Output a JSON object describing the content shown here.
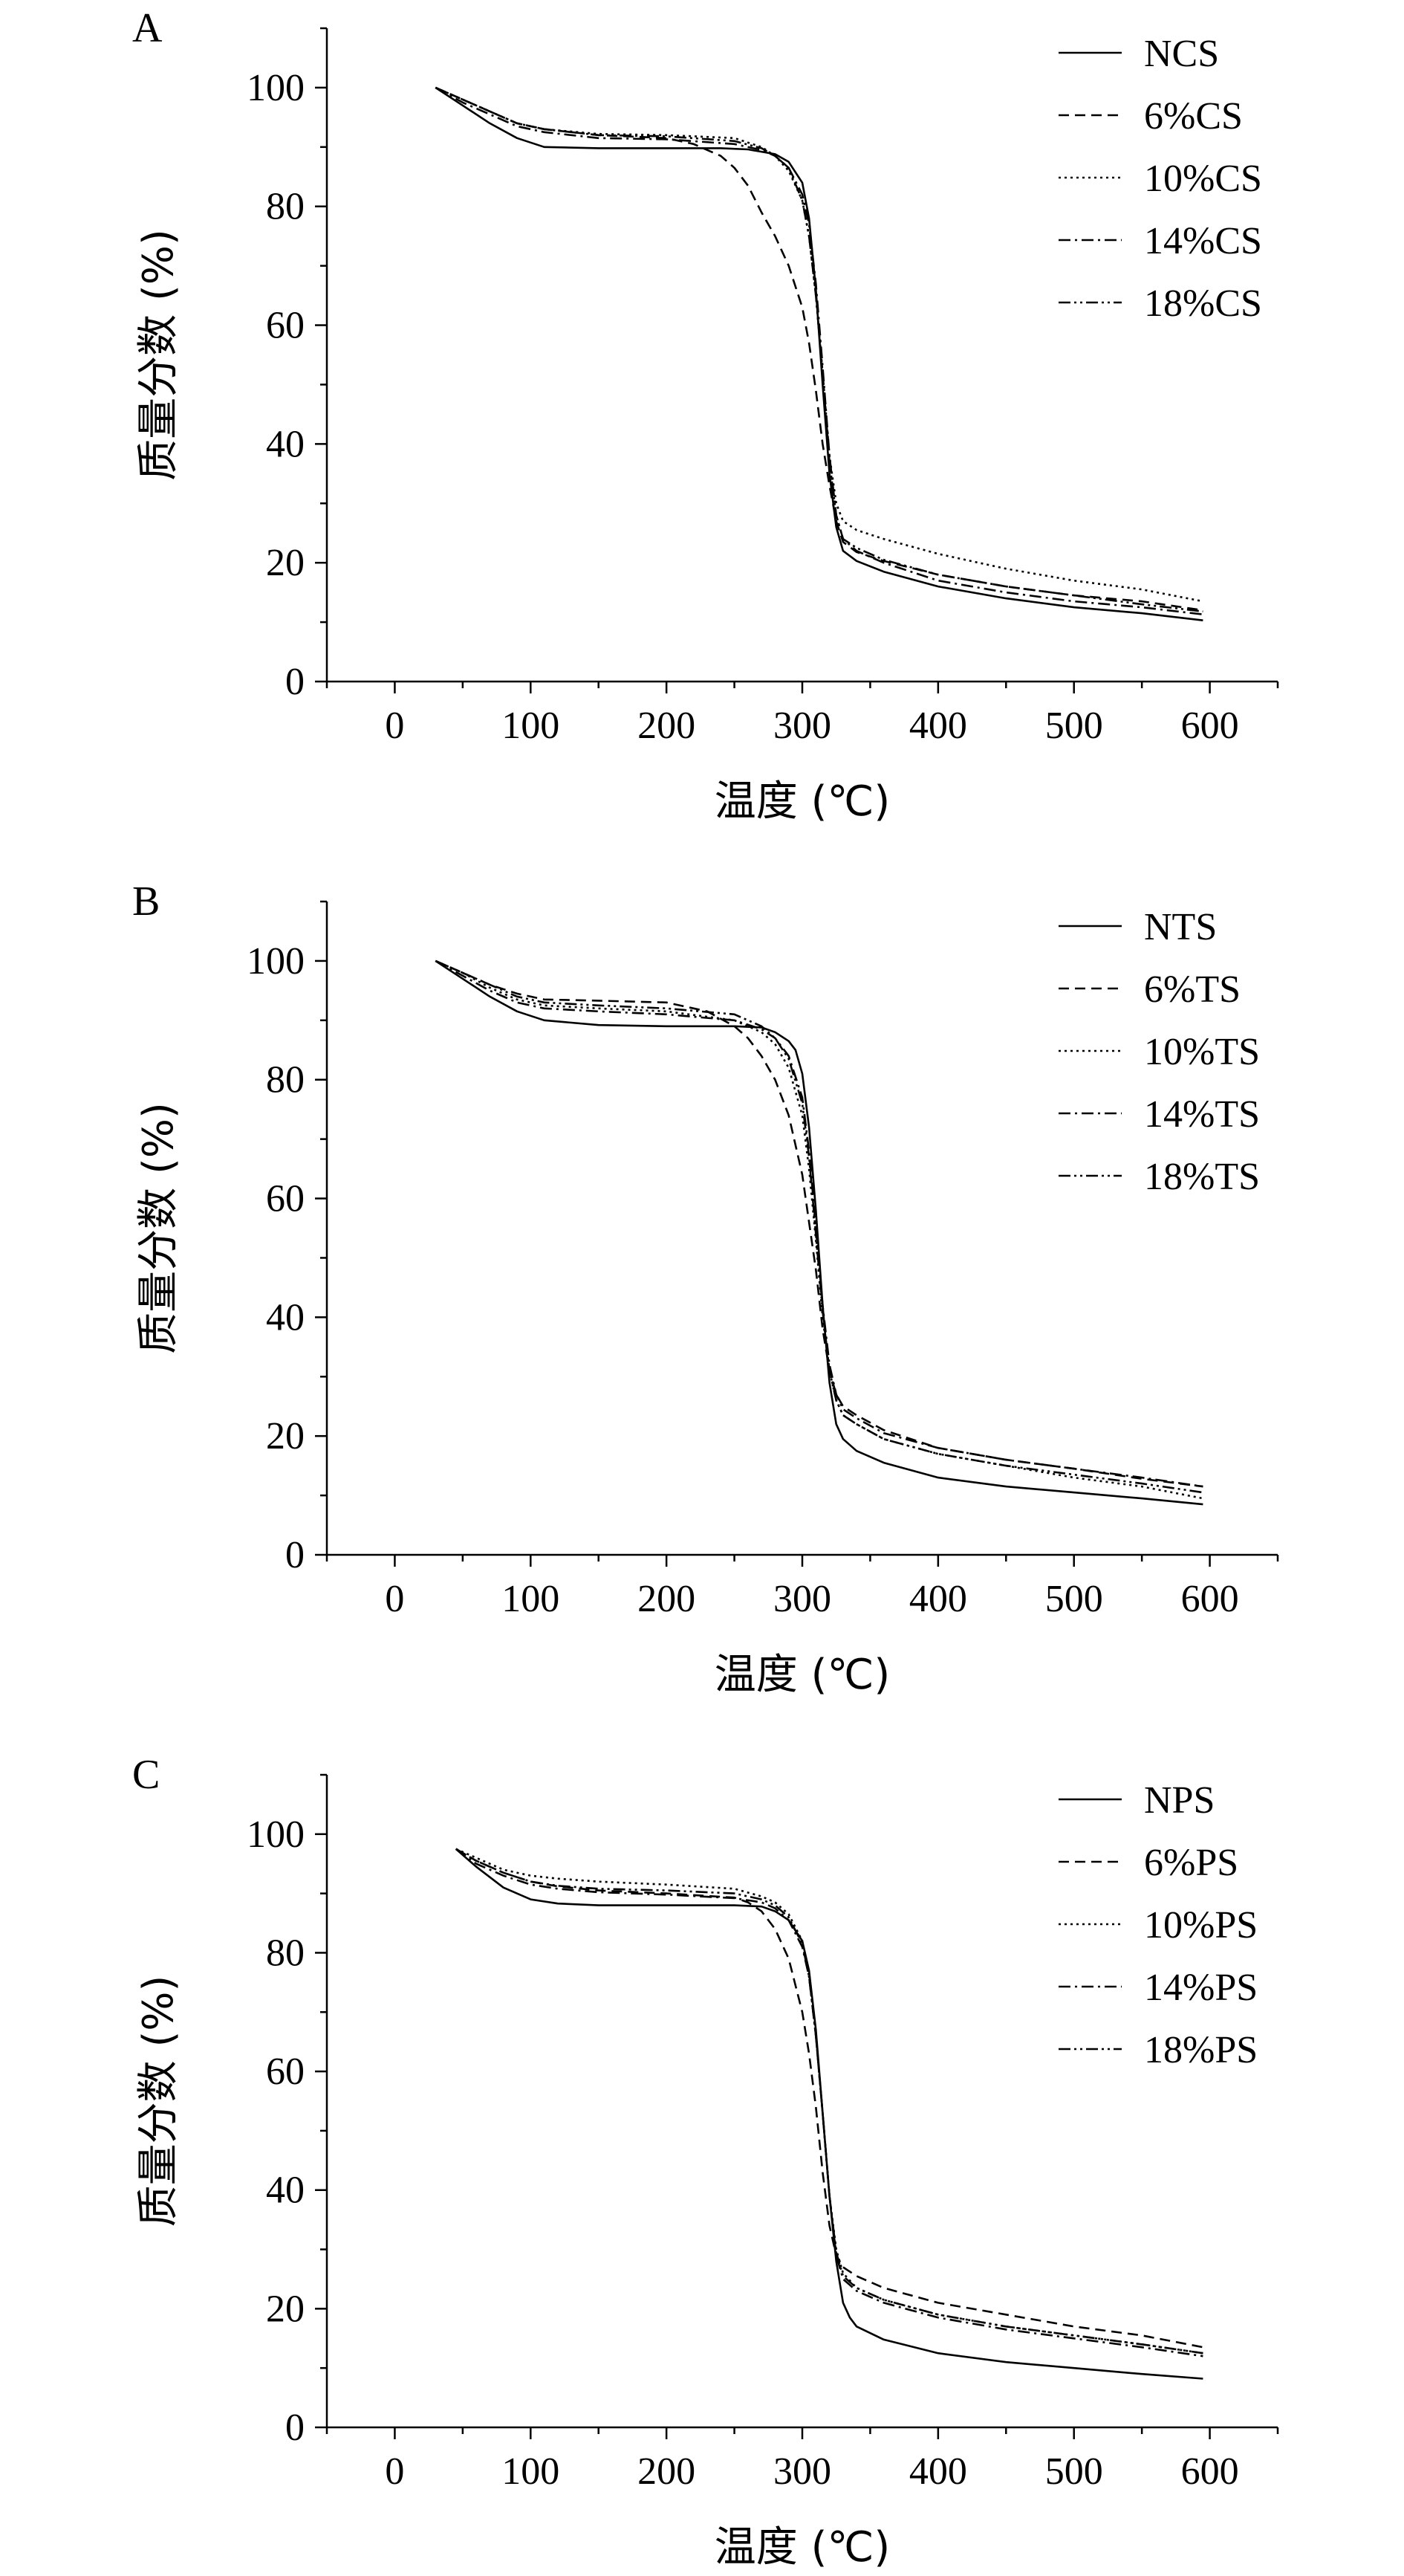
{
  "chart_data": [
    {
      "type": "line",
      "panel_label": "A",
      "xlabel": "温度 (℃)",
      "ylabel": "质量分数 (%)",
      "xlim": [
        -50,
        650
      ],
      "ylim": [
        0,
        110
      ],
      "xticks": [
        0,
        100,
        200,
        300,
        400,
        500,
        600
      ],
      "yticks": [
        0,
        20,
        40,
        60,
        80,
        100
      ],
      "grid": false,
      "legend": "top-right",
      "series": [
        {
          "name": "NCS",
          "dash": "solid",
          "x": [
            30,
            50,
            70,
            90,
            110,
            150,
            200,
            240,
            260,
            280,
            290,
            300,
            305,
            310,
            315,
            320,
            325,
            330,
            340,
            360,
            400,
            450,
            500,
            550,
            595
          ],
          "y": [
            100,
            97,
            94,
            91.5,
            90,
            89.8,
            89.8,
            89.8,
            89.6,
            88.8,
            87.5,
            84,
            78,
            66,
            50,
            35,
            26,
            22,
            20.3,
            18.5,
            16,
            14,
            12.5,
            11.5,
            10.3
          ]
        },
        {
          "name": "6%CS",
          "dash": "dash",
          "x": [
            30,
            50,
            70,
            90,
            110,
            150,
            200,
            220,
            240,
            250,
            260,
            270,
            280,
            290,
            300,
            305,
            310,
            315,
            320,
            325,
            330,
            340,
            360,
            400,
            450,
            500,
            550,
            595
          ],
          "y": [
            100,
            98,
            96,
            94,
            93,
            92,
            91.5,
            90.5,
            88.5,
            86.5,
            83.5,
            79,
            75,
            70,
            63,
            57,
            49,
            40,
            33,
            27,
            23.5,
            21.8,
            20.3,
            18,
            16,
            14.5,
            13.5,
            12
          ]
        },
        {
          "name": "10%CS",
          "dash": "dot",
          "x": [
            30,
            50,
            70,
            90,
            110,
            150,
            200,
            250,
            270,
            280,
            290,
            300,
            305,
            310,
            315,
            320,
            325,
            330,
            340,
            360,
            400,
            450,
            500,
            550,
            595
          ],
          "y": [
            100,
            98,
            96,
            94,
            93,
            92.2,
            92,
            91.5,
            90,
            88.5,
            86,
            81,
            75,
            65,
            52,
            38,
            30,
            27,
            25.5,
            24,
            21.5,
            19,
            17,
            15.5,
            13.5
          ]
        },
        {
          "name": "14%CS",
          "dash": "dashdot",
          "x": [
            30,
            50,
            70,
            90,
            110,
            150,
            200,
            250,
            270,
            280,
            290,
            300,
            305,
            310,
            315,
            320,
            325,
            330,
            340,
            360,
            400,
            450,
            500,
            550,
            595
          ],
          "y": [
            100,
            97.5,
            95.5,
            93.5,
            92.5,
            91.5,
            91.3,
            90.5,
            89.5,
            88.5,
            86.5,
            82,
            77,
            67,
            53,
            38,
            28,
            24,
            22,
            20,
            17,
            15,
            13.5,
            12.5,
            11.3
          ]
        },
        {
          "name": "18%CS",
          "dash": "dashdotdot",
          "x": [
            30,
            50,
            70,
            90,
            110,
            150,
            200,
            250,
            270,
            280,
            290,
            300,
            305,
            310,
            315,
            320,
            325,
            330,
            340,
            360,
            400,
            450,
            500,
            550,
            595
          ],
          "y": [
            100,
            98,
            96,
            94,
            93,
            92,
            91.8,
            91,
            89.8,
            88.5,
            86.5,
            81,
            75,
            65,
            52,
            37,
            28,
            24,
            22.5,
            20.5,
            18,
            16,
            14.5,
            13,
            11.8
          ]
        }
      ]
    },
    {
      "type": "line",
      "panel_label": "B",
      "xlabel": "温度 (℃)",
      "ylabel": "质量分数 (%)",
      "xlim": [
        -50,
        650
      ],
      "ylim": [
        0,
        110
      ],
      "xticks": [
        0,
        100,
        200,
        300,
        400,
        500,
        600
      ],
      "yticks": [
        0,
        20,
        40,
        60,
        80,
        100
      ],
      "grid": false,
      "legend": "top-right",
      "series": [
        {
          "name": "NTS",
          "dash": "solid",
          "x": [
            30,
            50,
            70,
            90,
            110,
            150,
            200,
            250,
            270,
            280,
            290,
            295,
            300,
            305,
            310,
            315,
            320,
            325,
            330,
            340,
            360,
            400,
            450,
            500,
            550,
            595
          ],
          "y": [
            100,
            97,
            94,
            91.5,
            90,
            89.2,
            89,
            89,
            88.8,
            88,
            86.5,
            85,
            81,
            72,
            58,
            42,
            29,
            22,
            19.5,
            17.5,
            15.5,
            13,
            11.5,
            10.5,
            9.5,
            8.5
          ]
        },
        {
          "name": "6%TS",
          "dash": "dash",
          "x": [
            30,
            50,
            70,
            90,
            110,
            150,
            200,
            230,
            250,
            260,
            270,
            280,
            290,
            300,
            305,
            310,
            315,
            320,
            325,
            330,
            340,
            360,
            400,
            450,
            500,
            550,
            595
          ],
          "y": [
            100,
            98,
            96,
            94.5,
            93.5,
            93.3,
            93,
            91.5,
            89,
            87,
            84,
            80,
            74,
            64,
            56,
            48,
            38,
            31,
            27,
            25,
            23.5,
            21,
            18,
            16,
            14.5,
            12.8,
            11.5
          ]
        },
        {
          "name": "10%TS",
          "dash": "dot",
          "x": [
            30,
            50,
            70,
            90,
            110,
            150,
            200,
            250,
            270,
            280,
            290,
            300,
            305,
            310,
            315,
            320,
            325,
            330,
            340,
            360,
            400,
            450,
            500,
            550,
            595
          ],
          "y": [
            100,
            98,
            95.5,
            93.5,
            92.5,
            92,
            91.5,
            90,
            88,
            86,
            82,
            74,
            65,
            53,
            40,
            31,
            26,
            23.5,
            22,
            19.5,
            17,
            15,
            13,
            11.5,
            9.5
          ]
        },
        {
          "name": "14%TS",
          "dash": "dashdot",
          "x": [
            30,
            50,
            70,
            90,
            110,
            150,
            200,
            250,
            270,
            280,
            290,
            300,
            305,
            310,
            315,
            320,
            325,
            330,
            340,
            360,
            400,
            450,
            500,
            550,
            595
          ],
          "y": [
            100,
            97.5,
            95,
            93,
            92,
            91.5,
            91,
            90,
            88.5,
            87,
            84,
            77,
            68,
            55,
            42,
            32,
            27,
            24.5,
            23,
            20.5,
            18,
            16,
            14.5,
            13,
            11.5
          ]
        },
        {
          "name": "18%TS",
          "dash": "dashdotdot",
          "x": [
            30,
            50,
            70,
            90,
            110,
            150,
            200,
            250,
            270,
            280,
            290,
            300,
            305,
            310,
            315,
            320,
            325,
            330,
            340,
            360,
            400,
            450,
            500,
            550,
            595
          ],
          "y": [
            100,
            98,
            96,
            94,
            93,
            92.5,
            92,
            91,
            89,
            87,
            83.5,
            76,
            67,
            54,
            41,
            31,
            26,
            23.5,
            22,
            19.5,
            17,
            15,
            13.5,
            12,
            10.5
          ]
        }
      ]
    },
    {
      "type": "line",
      "panel_label": "C",
      "xlabel": "温度 (℃)",
      "ylabel": "质量分数 (%)",
      "xlim": [
        -50,
        650
      ],
      "ylim": [
        0,
        110
      ],
      "xticks": [
        0,
        100,
        200,
        300,
        400,
        500,
        600
      ],
      "yticks": [
        0,
        20,
        40,
        60,
        80,
        100
      ],
      "grid": false,
      "legend": "top-right",
      "series": [
        {
          "name": "NPS",
          "dash": "solid",
          "x": [
            45,
            60,
            80,
            100,
            120,
            150,
            200,
            250,
            270,
            280,
            290,
            300,
            305,
            310,
            315,
            320,
            325,
            330,
            335,
            340,
            360,
            400,
            450,
            500,
            550,
            595
          ],
          "y": [
            97.5,
            94.5,
            91,
            89,
            88.3,
            88,
            88,
            88,
            87.8,
            87,
            85.5,
            82,
            77,
            67,
            53,
            39,
            28,
            21,
            18.5,
            17,
            14.8,
            12.5,
            11,
            10,
            9,
            8.2
          ]
        },
        {
          "name": "6%PS",
          "dash": "dash",
          "x": [
            45,
            60,
            80,
            100,
            120,
            150,
            200,
            250,
            260,
            270,
            280,
            290,
            300,
            305,
            310,
            315,
            320,
            325,
            330,
            340,
            360,
            400,
            450,
            500,
            550,
            595
          ],
          "y": [
            97.5,
            95.5,
            93.5,
            92,
            91.2,
            90.5,
            90,
            89.3,
            88.5,
            87,
            84,
            79,
            70,
            63,
            54,
            43,
            34,
            29,
            27,
            25.5,
            23.5,
            21,
            19,
            17,
            15.5,
            13.5
          ]
        },
        {
          "name": "10%PS",
          "dash": "dot",
          "x": [
            45,
            60,
            80,
            100,
            120,
            150,
            200,
            250,
            270,
            280,
            290,
            300,
            305,
            310,
            315,
            320,
            325,
            330,
            340,
            360,
            400,
            450,
            500,
            550,
            595
          ],
          "y": [
            97.5,
            96,
            94,
            93,
            92.5,
            92,
            91.5,
            90.8,
            89.5,
            88.5,
            86.5,
            82,
            76,
            66,
            53,
            39,
            30,
            26,
            23.5,
            21.5,
            19,
            17,
            15.5,
            14,
            12.5
          ]
        },
        {
          "name": "14%PS",
          "dash": "dashdot",
          "x": [
            45,
            60,
            80,
            100,
            120,
            150,
            200,
            250,
            270,
            280,
            290,
            300,
            305,
            310,
            315,
            320,
            325,
            330,
            340,
            360,
            400,
            450,
            500,
            550,
            595
          ],
          "y": [
            97.5,
            95,
            93,
            91.5,
            90.8,
            90.2,
            89.8,
            89.2,
            88.5,
            87.5,
            85.5,
            81,
            76,
            66,
            53,
            39,
            29,
            25,
            23,
            21,
            18.5,
            16.5,
            15,
            13.5,
            12
          ]
        },
        {
          "name": "18%PS",
          "dash": "dashdotdot",
          "x": [
            45,
            60,
            80,
            100,
            120,
            150,
            200,
            250,
            270,
            280,
            290,
            300,
            305,
            310,
            315,
            320,
            325,
            330,
            340,
            360,
            400,
            450,
            500,
            550,
            595
          ],
          "y": [
            97.5,
            95.5,
            93.5,
            92,
            91.3,
            90.8,
            90.5,
            90,
            89,
            88,
            86,
            81.5,
            76,
            66,
            53,
            39,
            29.5,
            25.5,
            23.5,
            21.5,
            19,
            17,
            15.5,
            14,
            12.5
          ]
        }
      ]
    }
  ]
}
